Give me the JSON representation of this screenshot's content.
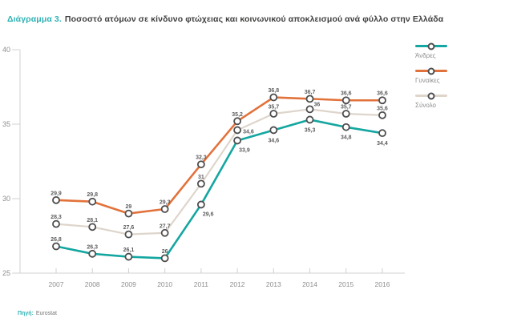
{
  "title": {
    "prefix": "Διάγραμμα 3.",
    "text": "Ποσοστό ατόμων σε κίνδυνο φτώχειας και κοινωνικού αποκλεισμού ανά φύλλο στην Ελλάδα"
  },
  "source": {
    "label": "Πηγή:",
    "value": "Eurostat"
  },
  "colors": {
    "teal": "#14a6a0",
    "orange": "#e2723b",
    "light_gray": "#ded5cb",
    "marker_ring": "#4d4d4d",
    "axis": "#d0d0d0",
    "tick_label": "#8e8e8e",
    "data_label": "#5e5e5e",
    "title_accent": "#30b2b5",
    "title_text": "#3f3f3e"
  },
  "chart_data": {
    "type": "line",
    "title": "Διάγραμμα 3. Ποσοστό ατόμων σε κίνδυνο φτώχειας και κοινωνικού αποκλεισμού ανά φύλλο στην Ελλάδα",
    "xlabel": "",
    "ylabel": "",
    "x": [
      "2007",
      "2008",
      "2009",
      "2010",
      "2011",
      "2012",
      "2013",
      "2014",
      "2015",
      "2016"
    ],
    "ylim": [
      25,
      40
    ],
    "yticks": [
      25,
      30,
      35,
      40
    ],
    "grid": false,
    "legend_position": "right",
    "marker": "open-circle",
    "series": [
      {
        "name": "Άνδρες",
        "color_key": "teal",
        "width": 2.6,
        "values": [
          26.8,
          26.3,
          26.1,
          26,
          29.6,
          33.9,
          34.6,
          35.3,
          34.8,
          34.4
        ],
        "labels": [
          "26,8",
          "26,3",
          "26,1",
          "26",
          "29,6",
          "33,9",
          "34,6",
          "35,3",
          "34,8",
          "34,4"
        ],
        "label_positions": [
          "above",
          "above",
          "above",
          "above",
          "below-right",
          "below-right",
          "below",
          "below",
          "below",
          "below"
        ]
      },
      {
        "name": "Γυναίκες",
        "color_key": "orange",
        "width": 2.6,
        "values": [
          29.9,
          29.8,
          29,
          29.3,
          32.3,
          35.2,
          36.8,
          36.7,
          36.6,
          36.6
        ],
        "labels": [
          "29,9",
          "29,8",
          "29",
          "29,3",
          "32,3",
          "35,2",
          "36,8",
          "36,7",
          "36,6",
          "36,6"
        ],
        "label_positions": [
          "above",
          "above",
          "above",
          "above",
          "above",
          "above",
          "above",
          "above",
          "above",
          "above"
        ]
      },
      {
        "name": "Σύνολο",
        "color_key": "light_gray",
        "width": 2.2,
        "values": [
          28.3,
          28.1,
          27.6,
          27.7,
          31,
          34.6,
          35.7,
          36,
          35.7,
          35.6
        ],
        "labels": [
          "28,3",
          "28,1",
          "27,6",
          "27,7",
          "31",
          "34,6",
          "35,7",
          "36",
          "35,7",
          "35,6"
        ],
        "label_positions": [
          "above",
          "above",
          "above",
          "above",
          "above",
          "right",
          "above",
          "above-right",
          "above",
          "above"
        ]
      }
    ]
  }
}
